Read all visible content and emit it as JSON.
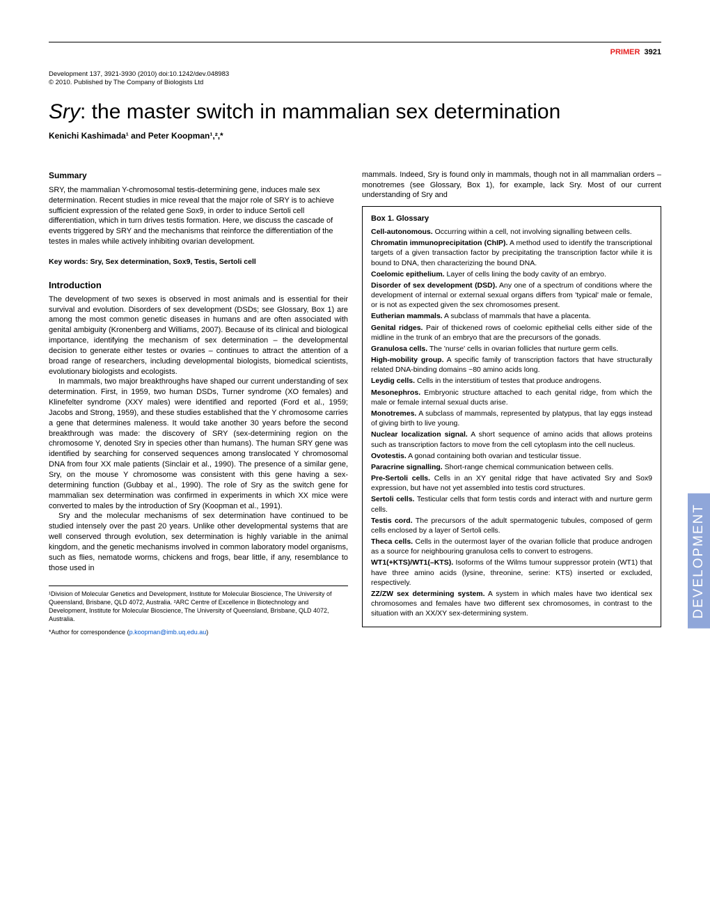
{
  "header": {
    "label": "PRIMER",
    "page_number": "3921"
  },
  "meta": {
    "line1": "Development 137, 3921-3930 (2010) doi:10.1242/dev.048983",
    "line2": "© 2010. Published by The Company of Biologists Ltd"
  },
  "title_prefix": "Sry",
  "title_rest": ": the master switch in mammalian sex determination",
  "authors_html": "Kenichi Kashimada¹ and Peter Koopman¹,²,*",
  "left": {
    "summary_h": "Summary",
    "summary": "SRY, the mammalian Y-chromosomal testis-determining gene, induces male sex determination. Recent studies in mice reveal that the major role of SRY is to achieve sufficient expression of the related gene Sox9, in order to induce Sertoli cell differentiation, which in turn drives testis formation. Here, we discuss the cascade of events triggered by SRY and the mechanisms that reinforce the differentiation of the testes in males while actively inhibiting ovarian development.",
    "keywords": "Key words: Sry, Sex determination, Sox9, Testis, Sertoli cell",
    "intro_h": "Introduction",
    "p1": "The development of two sexes is observed in most animals and is essential for their survival and evolution. Disorders of sex development (DSDs; see Glossary, Box 1) are among the most common genetic diseases in humans and are often associated with genital ambiguity (Kronenberg and Williams, 2007). Because of its clinical and biological importance, identifying the mechanism of sex determination – the developmental decision to generate either testes or ovaries – continues to attract the attention of a broad range of researchers, including developmental biologists, biomedical scientists, evolutionary biologists and ecologists.",
    "p2": "In mammals, two major breakthroughs have shaped our current understanding of sex determination. First, in 1959, two human DSDs, Turner syndrome (XO females) and Klinefelter syndrome (XXY males) were identified and reported (Ford et al., 1959; Jacobs and Strong, 1959), and these studies established that the Y chromosome carries a gene that determines maleness. It would take another 30 years before the second breakthrough was made: the discovery of SRY (sex-determining region on the chromosome Y, denoted Sry in species other than humans). The human SRY gene was identified by searching for conserved sequences among translocated Y chromosomal DNA from four XX male patients (Sinclair et al., 1990). The presence of a similar gene, Sry, on the mouse Y chromosome was consistent with this gene having a sex-determining function (Gubbay et al., 1990). The role of Sry as the switch gene for mammalian sex determination was confirmed in experiments in which XX mice were converted to males by the introduction of Sry (Koopman et al., 1991).",
    "p3": "Sry and the molecular mechanisms of sex determination have continued to be studied intensely over the past 20 years. Unlike other developmental systems that are well conserved through evolution, sex determination is highly variable in the animal kingdom, and the genetic mechanisms involved in common laboratory model organisms, such as flies, nematode worms, chickens and frogs, bear little, if any, resemblance to those used in",
    "affil": "¹Division of Molecular Genetics and Development, Institute for Molecular Bioscience, The University of Queensland, Brisbane, QLD 4072, Australia. ²ARC Centre of Excellence in Biotechnology and Development, Institute for Molecular Bioscience, The University of Queensland, Brisbane, QLD 4072, Australia.",
    "corresp_label": "*Author for correspondence (",
    "corresp_email": "p.koopman@imb.uq.edu.au",
    "corresp_close": ")"
  },
  "right": {
    "intro_cont": "mammals. Indeed, Sry is found only in mammals, though not in all mammalian orders – monotremes (see Glossary, Box 1), for example, lack Sry. Most of our current understanding of Sry and",
    "box_title": "Box 1. Glossary",
    "entries": [
      {
        "t": "Cell-autonomous.",
        "d": " Occurring within a cell, not involving signalling between cells."
      },
      {
        "t": "Chromatin immunoprecipitation (ChIP).",
        "d": " A method used to identify the transcriptional targets of a given transaction factor by precipitating the transcription factor while it is bound to DNA, then characterizing the bound DNA."
      },
      {
        "t": "Coelomic epithelium.",
        "d": " Layer of cells lining the body cavity of an embryo."
      },
      {
        "t": "Disorder of sex development (DSD).",
        "d": " Any one of a spectrum of conditions where the development of internal or external sexual organs differs from 'typical' male or female, or is not as expected given the sex chromosomes present."
      },
      {
        "t": "Eutherian mammals.",
        "d": " A subclass of mammals that have a placenta."
      },
      {
        "t": "Genital ridges.",
        "d": " Pair of thickened rows of coelomic epithelial cells either side of the midline in the trunk of an embryo that are the precursors of the gonads."
      },
      {
        "t": "Granulosa cells.",
        "d": " The 'nurse' cells in ovarian follicles that nurture germ cells."
      },
      {
        "t": "High-mobility group.",
        "d": " A specific family of transcription factors that have structurally related DNA-binding domains ~80 amino acids long."
      },
      {
        "t": "Leydig cells.",
        "d": " Cells in the interstitium of testes that produce androgens."
      },
      {
        "t": "Mesonephros.",
        "d": " Embryonic structure attached to each genital ridge, from which the male or female internal sexual ducts arise."
      },
      {
        "t": "Monotremes.",
        "d": " A subclass of mammals, represented by platypus, that lay eggs instead of giving birth to live young."
      },
      {
        "t": "Nuclear localization signal.",
        "d": " A short sequence of amino acids that allows proteins such as transcription factors to move from the cell cytoplasm into the cell nucleus."
      },
      {
        "t": "Ovotestis.",
        "d": " A gonad containing both ovarian and testicular tissue."
      },
      {
        "t": "Paracrine signalling.",
        "d": " Short-range chemical communication between cells."
      },
      {
        "t": "Pre-Sertoli cells.",
        "d": " Cells in an XY genital ridge that have activated Sry and Sox9 expression, but have not yet assembled into testis cord structures."
      },
      {
        "t": "Sertoli cells.",
        "d": " Testicular cells that form testis cords and interact with and nurture germ cells."
      },
      {
        "t": "Testis cord.",
        "d": " The precursors of the adult spermatogenic tubules, composed of germ cells enclosed by a layer of Sertoli cells."
      },
      {
        "t": "Theca cells.",
        "d": " Cells in the outermost layer of the ovarian follicle that produce androgen as a source for neighbouring granulosa cells to convert to estrogens."
      },
      {
        "t": "WT1(+KTS)/WT1(–KTS).",
        "d": " Isoforms of the Wilms tumour suppressor protein (WT1) that have three amino acids (lysine, threonine, serine: KTS) inserted or excluded, respectively."
      },
      {
        "t": "ZZ/ZW sex determining system.",
        "d": " A system in which males have two identical sex chromosomes and females have two different sex chromosomes, in contrast to the situation with an XX/XY sex-determining system."
      }
    ]
  },
  "sidetab": "DEVELOPMENT",
  "colors": {
    "primer_red": "#e62020",
    "sidetab_bg": "#8fa6d9",
    "link": "#0055cc"
  }
}
